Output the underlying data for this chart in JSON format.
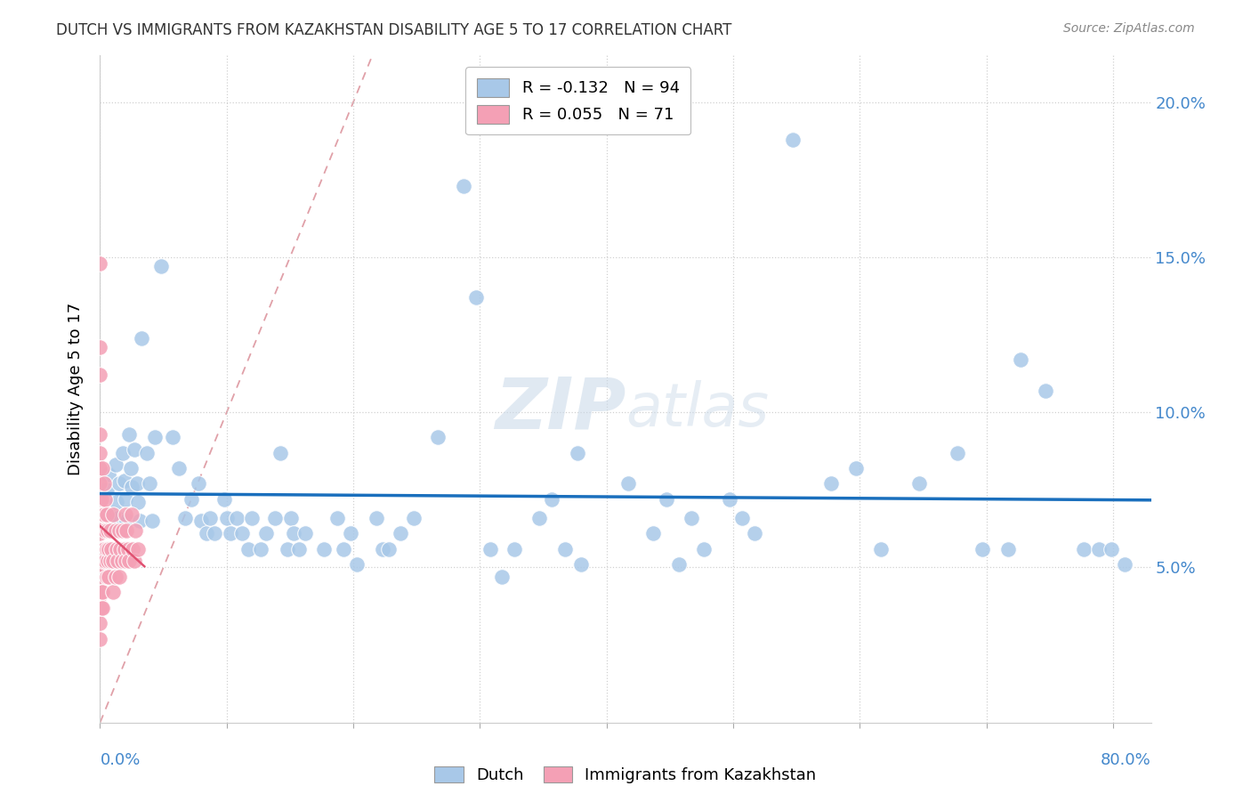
{
  "title": "DUTCH VS IMMIGRANTS FROM KAZAKHSTAN DISABILITY AGE 5 TO 17 CORRELATION CHART",
  "source": "Source: ZipAtlas.com",
  "ylabel": "Disability Age 5 to 17",
  "legend_dutch": "Dutch",
  "legend_kazakh": "Immigrants from Kazakhstan",
  "dutch_R": -0.132,
  "dutch_N": 94,
  "kazakh_R": 0.055,
  "kazakh_N": 71,
  "dutch_color": "#a8c8e8",
  "dutch_line_color": "#1a6fbd",
  "kazakh_color": "#f4a0b5",
  "kazakh_line_color": "#e05070",
  "diagonal_color": "#e0a0a8",
  "watermark_color": "#c8d8e8",
  "ylim_min": 0.0,
  "ylim_max": 0.215,
  "xlim_min": 0.0,
  "xlim_max": 0.83,
  "yticks": [
    0.05,
    0.1,
    0.15,
    0.2
  ],
  "ytick_labels": [
    "5.0%",
    "10.0%",
    "15.0%",
    "20.0%"
  ],
  "dutch_points": [
    [
      0.005,
      0.075
    ],
    [
      0.007,
      0.08
    ],
    [
      0.008,
      0.067
    ],
    [
      0.009,
      0.062
    ],
    [
      0.012,
      0.083
    ],
    [
      0.013,
      0.071
    ],
    [
      0.014,
      0.066
    ],
    [
      0.015,
      0.077
    ],
    [
      0.018,
      0.087
    ],
    [
      0.019,
      0.078
    ],
    [
      0.02,
      0.072
    ],
    [
      0.021,
      0.065
    ],
    [
      0.023,
      0.093
    ],
    [
      0.024,
      0.082
    ],
    [
      0.025,
      0.076
    ],
    [
      0.027,
      0.088
    ],
    [
      0.029,
      0.077
    ],
    [
      0.03,
      0.071
    ],
    [
      0.031,
      0.065
    ],
    [
      0.033,
      0.124
    ],
    [
      0.037,
      0.087
    ],
    [
      0.039,
      0.077
    ],
    [
      0.041,
      0.065
    ],
    [
      0.043,
      0.092
    ],
    [
      0.048,
      0.147
    ],
    [
      0.057,
      0.092
    ],
    [
      0.062,
      0.082
    ],
    [
      0.067,
      0.066
    ],
    [
      0.072,
      0.072
    ],
    [
      0.078,
      0.077
    ],
    [
      0.08,
      0.065
    ],
    [
      0.084,
      0.061
    ],
    [
      0.087,
      0.066
    ],
    [
      0.09,
      0.061
    ],
    [
      0.098,
      0.072
    ],
    [
      0.1,
      0.066
    ],
    [
      0.103,
      0.061
    ],
    [
      0.108,
      0.066
    ],
    [
      0.112,
      0.061
    ],
    [
      0.117,
      0.056
    ],
    [
      0.12,
      0.066
    ],
    [
      0.127,
      0.056
    ],
    [
      0.131,
      0.061
    ],
    [
      0.138,
      0.066
    ],
    [
      0.142,
      0.087
    ],
    [
      0.148,
      0.056
    ],
    [
      0.151,
      0.066
    ],
    [
      0.153,
      0.061
    ],
    [
      0.157,
      0.056
    ],
    [
      0.162,
      0.061
    ],
    [
      0.177,
      0.056
    ],
    [
      0.187,
      0.066
    ],
    [
      0.192,
      0.056
    ],
    [
      0.198,
      0.061
    ],
    [
      0.203,
      0.051
    ],
    [
      0.218,
      0.066
    ],
    [
      0.223,
      0.056
    ],
    [
      0.228,
      0.056
    ],
    [
      0.237,
      0.061
    ],
    [
      0.248,
      0.066
    ],
    [
      0.267,
      0.092
    ],
    [
      0.287,
      0.173
    ],
    [
      0.297,
      0.137
    ],
    [
      0.308,
      0.056
    ],
    [
      0.317,
      0.047
    ],
    [
      0.327,
      0.056
    ],
    [
      0.347,
      0.066
    ],
    [
      0.357,
      0.072
    ],
    [
      0.367,
      0.056
    ],
    [
      0.377,
      0.087
    ],
    [
      0.38,
      0.051
    ],
    [
      0.417,
      0.077
    ],
    [
      0.437,
      0.061
    ],
    [
      0.447,
      0.072
    ],
    [
      0.457,
      0.051
    ],
    [
      0.467,
      0.066
    ],
    [
      0.477,
      0.056
    ],
    [
      0.497,
      0.072
    ],
    [
      0.507,
      0.066
    ],
    [
      0.517,
      0.061
    ],
    [
      0.547,
      0.188
    ],
    [
      0.577,
      0.077
    ],
    [
      0.597,
      0.082
    ],
    [
      0.617,
      0.056
    ],
    [
      0.647,
      0.077
    ],
    [
      0.677,
      0.087
    ],
    [
      0.697,
      0.056
    ],
    [
      0.717,
      0.056
    ],
    [
      0.727,
      0.117
    ],
    [
      0.747,
      0.107
    ],
    [
      0.777,
      0.056
    ],
    [
      0.789,
      0.056
    ],
    [
      0.799,
      0.056
    ],
    [
      0.809,
      0.051
    ]
  ],
  "kazakh_points": [
    [
      0.0,
      0.148
    ],
    [
      0.0,
      0.121
    ],
    [
      0.0,
      0.112
    ],
    [
      0.0,
      0.093
    ],
    [
      0.0,
      0.087
    ],
    [
      0.0,
      0.082
    ],
    [
      0.0,
      0.077
    ],
    [
      0.0,
      0.072
    ],
    [
      0.0,
      0.071
    ],
    [
      0.0,
      0.067
    ],
    [
      0.0,
      0.066
    ],
    [
      0.0,
      0.061
    ],
    [
      0.0,
      0.056
    ],
    [
      0.0,
      0.055
    ],
    [
      0.0,
      0.051
    ],
    [
      0.0,
      0.046
    ],
    [
      0.0,
      0.041
    ],
    [
      0.0,
      0.037
    ],
    [
      0.0,
      0.032
    ],
    [
      0.0,
      0.027
    ],
    [
      0.001,
      0.072
    ],
    [
      0.001,
      0.067
    ],
    [
      0.001,
      0.056
    ],
    [
      0.001,
      0.051
    ],
    [
      0.001,
      0.042
    ],
    [
      0.001,
      0.037
    ],
    [
      0.002,
      0.082
    ],
    [
      0.002,
      0.067
    ],
    [
      0.002,
      0.056
    ],
    [
      0.002,
      0.052
    ],
    [
      0.002,
      0.042
    ],
    [
      0.002,
      0.037
    ],
    [
      0.003,
      0.077
    ],
    [
      0.003,
      0.067
    ],
    [
      0.003,
      0.056
    ],
    [
      0.004,
      0.072
    ],
    [
      0.004,
      0.062
    ],
    [
      0.004,
      0.052
    ],
    [
      0.005,
      0.067
    ],
    [
      0.005,
      0.056
    ],
    [
      0.005,
      0.047
    ],
    [
      0.006,
      0.062
    ],
    [
      0.006,
      0.052
    ],
    [
      0.007,
      0.056
    ],
    [
      0.007,
      0.047
    ],
    [
      0.008,
      0.062
    ],
    [
      0.008,
      0.052
    ],
    [
      0.009,
      0.056
    ],
    [
      0.01,
      0.067
    ],
    [
      0.01,
      0.052
    ],
    [
      0.01,
      0.042
    ],
    [
      0.012,
      0.062
    ],
    [
      0.012,
      0.047
    ],
    [
      0.013,
      0.056
    ],
    [
      0.014,
      0.052
    ],
    [
      0.015,
      0.062
    ],
    [
      0.015,
      0.047
    ],
    [
      0.016,
      0.056
    ],
    [
      0.017,
      0.052
    ],
    [
      0.018,
      0.062
    ],
    [
      0.019,
      0.056
    ],
    [
      0.02,
      0.067
    ],
    [
      0.02,
      0.052
    ],
    [
      0.021,
      0.062
    ],
    [
      0.022,
      0.056
    ],
    [
      0.023,
      0.052
    ],
    [
      0.025,
      0.067
    ],
    [
      0.026,
      0.056
    ],
    [
      0.027,
      0.052
    ],
    [
      0.028,
      0.062
    ],
    [
      0.03,
      0.056
    ]
  ]
}
